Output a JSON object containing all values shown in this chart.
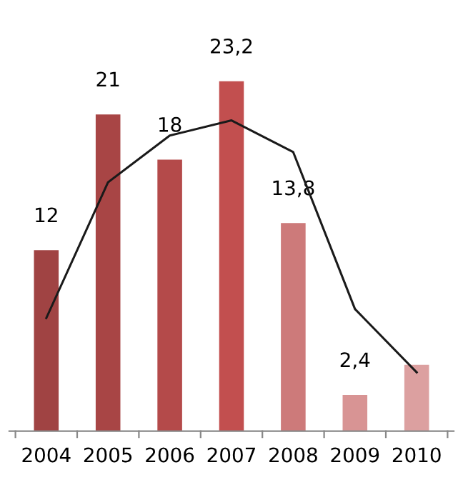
{
  "chart_data": {
    "type": "bar",
    "categories": [
      "2004",
      "2005",
      "2006",
      "2007",
      "2008",
      "2009",
      "2010"
    ],
    "series": [
      {
        "colors": [
          "#a04343",
          "#a84545",
          "#b44a4a",
          "#c24f4f",
          "#cd7a7a",
          "#d89494",
          "#dca0a0"
        ],
        "values": [
          12,
          21,
          18,
          23.2,
          13.8,
          2.4,
          4.4
        ],
        "value_labels": [
          "12",
          "21",
          "18",
          "23,2",
          "13,8",
          "2,4",
          null
        ]
      },
      {
        "type": "line",
        "color": "#1a1a1a",
        "values": [
          7.5,
          16.5,
          19.6,
          20.6,
          18.5,
          8.1,
          3.9
        ]
      }
    ],
    "tick_labels": "x",
    "grid": false,
    "legend": false,
    "marker": "none",
    "line_style": "solid"
  }
}
